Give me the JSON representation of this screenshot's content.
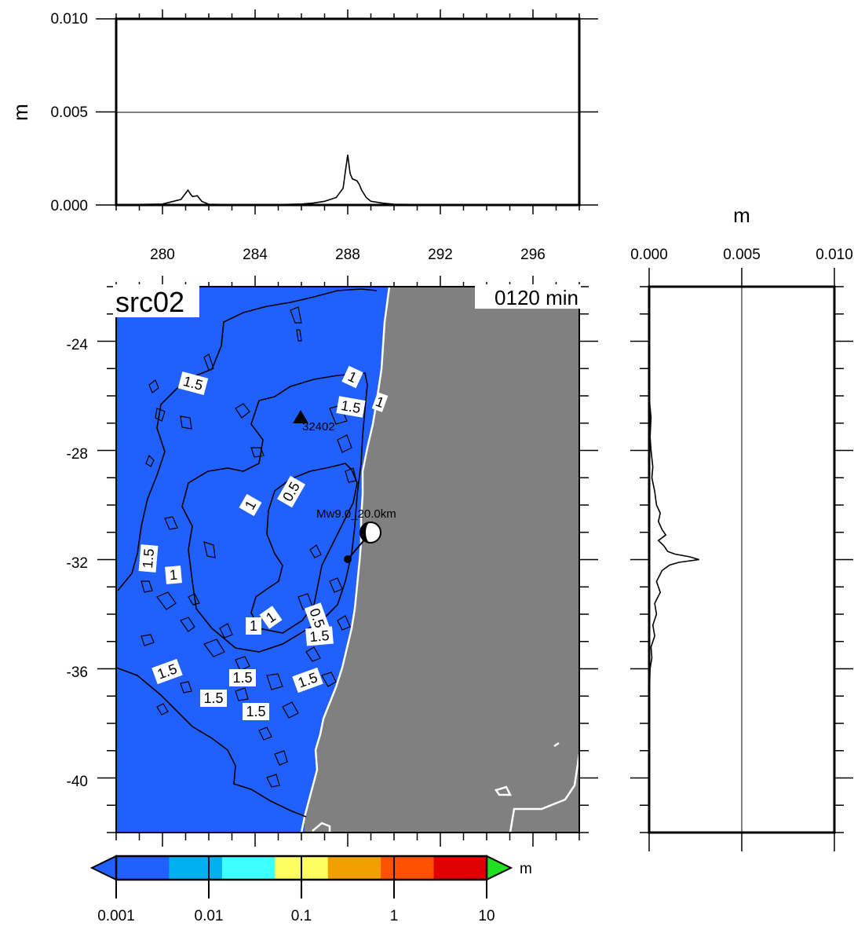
{
  "top_panel": {
    "ylabel": "m",
    "y_ticks": [
      "0.000",
      "0.005",
      "0.010"
    ],
    "x_tick_labels": [
      "280",
      "284",
      "288",
      "292",
      "296"
    ]
  },
  "right_panel": {
    "xlabel": "m",
    "x_ticks": [
      "0.000",
      "0.005",
      "0.010"
    ]
  },
  "map": {
    "source_label": "src02",
    "time_label": "0120 min",
    "lat_tick_labels": [
      "-24",
      "-28",
      "-32",
      "-36",
      "-40"
    ],
    "station_label": "32402",
    "event_label": "Mw9.0_20.0km",
    "contour_labels": [
      "1.5",
      "1",
      "1.5",
      "1",
      "0.5",
      "1",
      "1.5",
      "1",
      "1",
      "1",
      "0.5",
      "1.5",
      "1.5",
      "1.5",
      "1.5",
      "1.5",
      "1.5"
    ]
  },
  "colorbar": {
    "unit": "m",
    "tick_labels": [
      "0.001",
      "0.01",
      "0.1",
      "1",
      "10"
    ],
    "colors": [
      "#2060ff",
      "#00b0f0",
      "#40ffff",
      "#ffff60",
      "#f0a000",
      "#ff5000",
      "#e00000"
    ],
    "under_color": "#2060ff",
    "over_color": "#20e020"
  },
  "colors": {
    "ocean": "#2060ff",
    "land": "#808080",
    "coast": "#ffffff"
  },
  "chart_data": [
    {
      "type": "line",
      "title": "",
      "xlabel": "",
      "ylabel": "m",
      "xlim": [
        278,
        298
      ],
      "ylim": [
        0,
        0.01
      ],
      "grid": false,
      "series": [
        {
          "x": [
            278,
            279,
            280,
            280.8,
            281.1,
            281.2,
            281.3,
            281.5,
            281.7,
            282,
            283,
            284,
            285,
            286,
            286.5,
            287,
            287.5,
            287.8,
            287.9,
            288.0,
            288.1,
            288.2,
            288.4,
            288.5,
            288.6,
            288.8,
            289,
            289.5,
            290,
            292,
            294,
            296,
            298
          ],
          "y": [
            0,
            3e-05,
            5e-05,
            0.0003,
            0.0008,
            0.0006,
            0.00045,
            0.0005,
            0.0002,
            4e-05,
            2e-05,
            3e-05,
            2e-05,
            5e-05,
            0.0001,
            0.0002,
            0.0004,
            0.0009,
            0.0018,
            0.0027,
            0.0017,
            0.0014,
            0.0013,
            0.0011,
            0.0008,
            0.0004,
            0.0002,
            0.0001,
            4e-05,
            2e-05,
            1e-05,
            1e-05,
            0
          ]
        }
      ]
    },
    {
      "type": "line",
      "title": "",
      "xlabel": "m",
      "ylabel": "",
      "xlim": [
        0,
        0.01
      ],
      "ylim": [
        -42,
        -22
      ],
      "grid": false,
      "series": [
        {
          "y": [
            -26.2,
            -26.8,
            -27.5,
            -28,
            -28.6,
            -29,
            -29.5,
            -30,
            -30.3,
            -30.6,
            -30.9,
            -31.1,
            -31.3,
            -31.5,
            -31.7,
            -31.8,
            -31.9,
            -32.0,
            -32.1,
            -32.2,
            -32.4,
            -32.8,
            -33.2,
            -33.6,
            -34,
            -34.4,
            -34.8,
            -35.2,
            -35.6,
            -36,
            -36.5,
            -37,
            -38,
            -39,
            -40,
            -41,
            -42
          ],
          "x": [
            2e-05,
            0.0001,
            5e-05,
            0.0001,
            0.0002,
            0.00015,
            0.0003,
            0.0004,
            0.0006,
            0.0005,
            0.0007,
            0.0009,
            0.0005,
            0.0008,
            0.001,
            0.0014,
            0.0022,
            0.0027,
            0.0016,
            0.0011,
            0.0007,
            0.0004,
            0.0006,
            0.0003,
            0.0004,
            0.0002,
            0.0003,
            0.0001,
            0.00015,
            5e-05,
            3e-05,
            2e-05,
            1e-05,
            1e-05,
            1e-05,
            1e-05,
            1e-05
          ]
        }
      ]
    }
  ]
}
